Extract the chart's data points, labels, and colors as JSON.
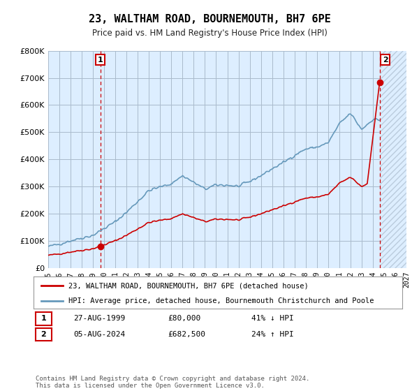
{
  "title": "23, WALTHAM ROAD, BOURNEMOUTH, BH7 6PE",
  "subtitle": "Price paid vs. HM Land Registry's House Price Index (HPI)",
  "legend_line1": "23, WALTHAM ROAD, BOURNEMOUTH, BH7 6PE (detached house)",
  "legend_line2": "HPI: Average price, detached house, Bournemouth Christchurch and Poole",
  "footnote": "Contains HM Land Registry data © Crown copyright and database right 2024.\nThis data is licensed under the Open Government Licence v3.0.",
  "red_color": "#cc0000",
  "blue_color": "#6699bb",
  "plot_bg": "#ddeeff",
  "hatch_color": "#bbccdd",
  "ylim": [
    0,
    800000
  ],
  "xlim_left": 1995.0,
  "xlim_right": 2027.0,
  "marker1_x": 1999.65,
  "marker1_y": 80000,
  "marker2_x": 2024.6,
  "marker2_y": 682500,
  "grid_color": "#aabbcc"
}
